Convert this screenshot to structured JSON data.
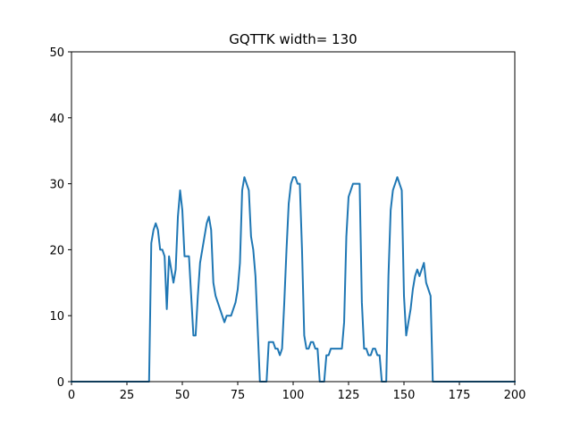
{
  "chart_data": {
    "type": "line",
    "title": "GQTTK width= 130",
    "xlabel": "",
    "ylabel": "",
    "xlim": [
      0,
      200
    ],
    "ylim": [
      0,
      50
    ],
    "xticks": [
      0,
      25,
      50,
      75,
      100,
      125,
      150,
      175,
      200
    ],
    "yticks": [
      0,
      10,
      20,
      30,
      40,
      50
    ],
    "grid": false,
    "color": "#1f77b4",
    "series": [
      {
        "x": [
          0,
          35,
          36,
          37,
          38,
          39,
          40,
          41,
          42,
          43,
          44,
          45,
          46,
          47,
          48,
          49,
          50,
          51,
          52,
          53,
          54,
          55,
          56,
          57,
          58,
          59,
          60,
          61,
          62,
          63,
          64,
          65,
          66,
          67,
          68,
          69,
          70,
          71,
          72,
          73,
          74,
          75,
          76,
          77,
          78,
          79,
          80,
          81,
          82,
          83,
          84,
          85,
          86,
          87,
          88,
          89,
          90,
          91,
          92,
          93,
          94,
          95,
          96,
          97,
          98,
          99,
          100,
          101,
          102,
          103,
          104,
          105,
          106,
          107,
          108,
          109,
          110,
          111,
          112,
          113,
          114,
          115,
          116,
          117,
          118,
          119,
          120,
          121,
          122,
          123,
          124,
          125,
          126,
          127,
          128,
          129,
          130,
          131,
          132,
          133,
          134,
          135,
          136,
          137,
          138,
          139,
          140,
          141,
          142,
          143,
          144,
          145,
          146,
          147,
          148,
          149,
          150,
          151,
          152,
          153,
          154,
          155,
          156,
          157,
          158,
          159,
          160,
          161,
          162,
          163,
          164,
          165,
          200
        ],
        "y": [
          0,
          0,
          21,
          23,
          24,
          23,
          20,
          20,
          19,
          11,
          19,
          17,
          15,
          17,
          25,
          29,
          26,
          19,
          19,
          19,
          13,
          7,
          7,
          13,
          18,
          20,
          22,
          24,
          25,
          23,
          15,
          13,
          12,
          11,
          10,
          9,
          10,
          10,
          10,
          11,
          12,
          14,
          18,
          29,
          31,
          30,
          29,
          22,
          20,
          16,
          8,
          0,
          0,
          0,
          0,
          6,
          6,
          6,
          5,
          5,
          4,
          5,
          12,
          20,
          27,
          30,
          31,
          31,
          30,
          30,
          20,
          7,
          5,
          5,
          6,
          6,
          5,
          5,
          0,
          0,
          0,
          4,
          4,
          5,
          5,
          5,
          5,
          5,
          5,
          9,
          22,
          28,
          29,
          30,
          30,
          30,
          30,
          12,
          5,
          5,
          4,
          4,
          5,
          5,
          4,
          4,
          0,
          0,
          0,
          16,
          26,
          29,
          30,
          31,
          30,
          29,
          13,
          7,
          9,
          11,
          14,
          16,
          17,
          16,
          17,
          18,
          15,
          14,
          13,
          0,
          0,
          0,
          0
        ]
      }
    ]
  }
}
